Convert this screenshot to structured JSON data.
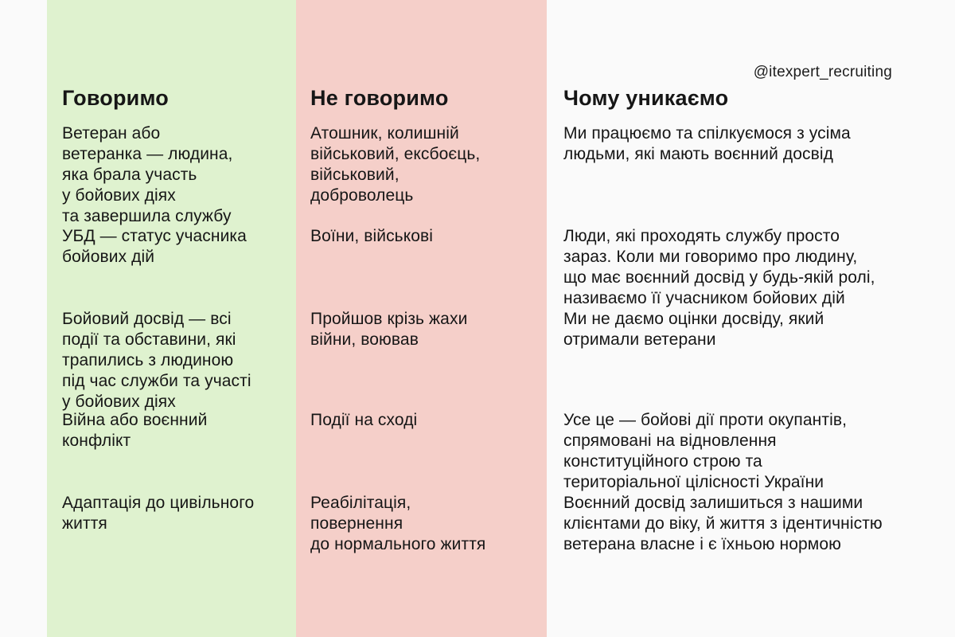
{
  "watermark": "@itexpert_recruiting",
  "colors": {
    "say_column_bg": "#dff2cf",
    "dont_say_column_bg": "#f5cfc9",
    "page_bg": "#fafafa",
    "text": "#161616"
  },
  "table": {
    "columns": [
      {
        "header": "Говоримо",
        "items": [
          "Ветеран або\nветеранка — людина,\nяка брала участь\nу бойових діях\nта завершила службу",
          "УБД — статус учасника\nбойових дій",
          "Бойовий досвід — всі\nподії та обставини, які\nтрапились з людиною\nпід час служби та участі\nу бойових діях",
          "Війна або воєнний\nконфлікт",
          "Адаптація до цивільного\nжиття"
        ]
      },
      {
        "header": "Не говоримо",
        "items": [
          "Атошник, колишній\nвійськовий, ексбоєць,\nвійськовий,\nдоброволець",
          "Воїни, військові",
          "Пройшов крізь жахи\nвійни, воював",
          "Події на сході",
          "Реабілітація,\nповернення\nдо нормального життя"
        ]
      },
      {
        "header": "Чому уникаємо",
        "items": [
          "Ми працюємо та спілкуємося з усіма\nлюдьми, які мають воєнний досвід",
          "Люди, які проходять службу просто\nзараз. Коли ми говоримо про людину,\nщо має воєнний досвід у будь-якій ролі,\nназиваємо її учасником бойових дій",
          "Ми не даємо оцінки досвіду, який\nотримали ветерани",
          "Усе це — бойові дії проти окупантів,\nспрямовані на відновлення\nконституційного строю та\nтериторіальної цілісності України",
          "Воєнний досвід залишиться з нашими\nклієнтами до віку, й життя з ідентичністю\nветерана власне і є їхньою нормою"
        ]
      }
    ]
  }
}
